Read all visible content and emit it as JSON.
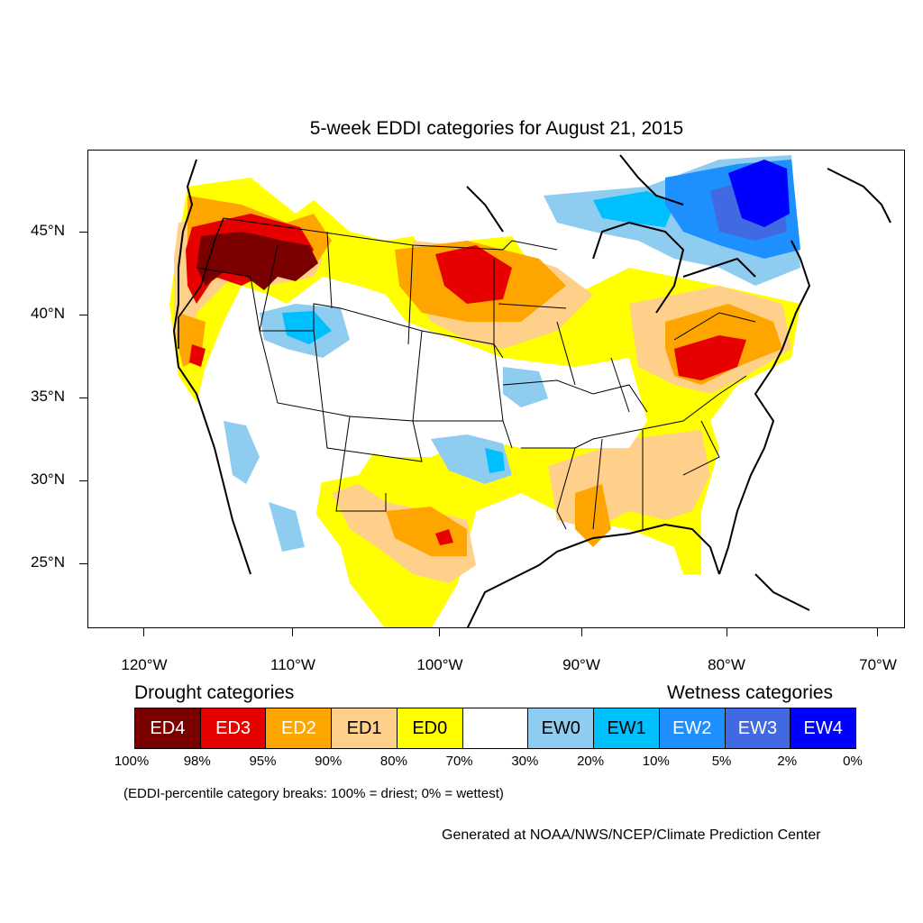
{
  "title": "5-week EDDI categories for August 21, 2015",
  "y_axis": {
    "ticks": [
      {
        "value": 45,
        "label": "45°N"
      },
      {
        "value": 40,
        "label": "40°N"
      },
      {
        "value": 35,
        "label": "35°N"
      },
      {
        "value": 30,
        "label": "30°N"
      },
      {
        "value": 25,
        "label": "25°N"
      }
    ]
  },
  "x_axis": {
    "ticks": [
      {
        "value": -120,
        "label": "120°W"
      },
      {
        "value": -110,
        "label": "110°W"
      },
      {
        "value": -100,
        "label": "100°W"
      },
      {
        "value": -90,
        "label": "90°W"
      },
      {
        "value": -80,
        "label": "80°W"
      },
      {
        "value": -70,
        "label": "70°W"
      }
    ]
  },
  "legend": {
    "drought_heading": "Drought categories",
    "wetness_heading": "Wetness categories",
    "categories": [
      {
        "label": "ED4",
        "color": "#7a0000",
        "text_color": "#ffffff"
      },
      {
        "label": "ED3",
        "color": "#e60000",
        "text_color": "#ffffff"
      },
      {
        "label": "ED2",
        "color": "#ffa500",
        "text_color": "#ffffff"
      },
      {
        "label": "ED1",
        "color": "#ffd08a",
        "text_color": "#000000"
      },
      {
        "label": "ED0",
        "color": "#ffff00",
        "text_color": "#000000"
      },
      {
        "label": "",
        "color": "#ffffff",
        "text_color": "#000000"
      },
      {
        "label": "EW0",
        "color": "#8ecdf0",
        "text_color": "#000000"
      },
      {
        "label": "EW1",
        "color": "#00bfff",
        "text_color": "#000000"
      },
      {
        "label": "EW2",
        "color": "#1e8fff",
        "text_color": "#ffffff"
      },
      {
        "label": "EW3",
        "color": "#4169e1",
        "text_color": "#ffffff"
      },
      {
        "label": "EW4",
        "color": "#0000ff",
        "text_color": "#ffffff"
      }
    ],
    "breaks": [
      "100%",
      "98%",
      "95%",
      "90%",
      "80%",
      "70%",
      "30%",
      "20%",
      "10%",
      "5%",
      "2%",
      "0%"
    ]
  },
  "note": "(EDDI-percentile category breaks: 100% = driest; 0% = wettest)",
  "credit": "Generated at NOAA/NWS/NCEP/Climate Prediction Center"
}
